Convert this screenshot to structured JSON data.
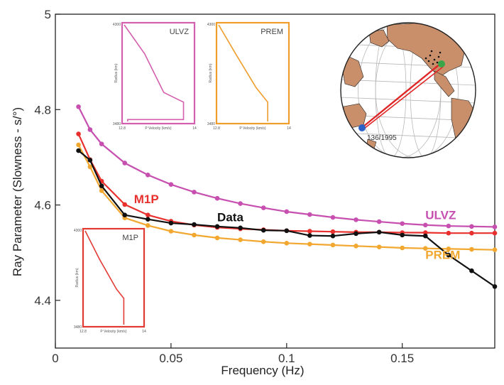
{
  "chart_data": {
    "type": "line",
    "xlabel": "Frequency (Hz)",
    "ylabel": "Ray Parameter (Slowness - s/°)",
    "xlim": [
      0,
      0.19
    ],
    "ylim": [
      4.3,
      5.0
    ],
    "xticks": [
      0,
      0.05,
      0.1,
      0.15
    ],
    "xtick_labels": [
      "0",
      "0.05",
      "0.1",
      "0.15"
    ],
    "yticks": [
      4.4,
      4.6,
      4.8,
      5.0
    ],
    "ytick_labels": [
      "4.4",
      "4.6",
      "4.8",
      "5"
    ],
    "grid": false,
    "series": [
      {
        "name": "ULVZ",
        "color": "#c64fb0",
        "x": [
          0.01,
          0.015,
          0.02,
          0.03,
          0.04,
          0.05,
          0.06,
          0.07,
          0.08,
          0.09,
          0.1,
          0.11,
          0.12,
          0.13,
          0.14,
          0.15,
          0.16,
          0.17,
          0.18,
          0.19
        ],
        "y": [
          4.806,
          4.758,
          4.728,
          4.688,
          4.663,
          4.643,
          4.627,
          4.614,
          4.603,
          4.594,
          4.586,
          4.58,
          4.574,
          4.569,
          4.565,
          4.561,
          4.558,
          4.556,
          4.555,
          4.554
        ]
      },
      {
        "name": "M1P",
        "color": "#e8302e",
        "x": [
          0.01,
          0.015,
          0.02,
          0.03,
          0.04,
          0.05,
          0.06,
          0.07,
          0.08,
          0.09,
          0.1,
          0.11,
          0.12,
          0.13,
          0.14,
          0.15,
          0.16,
          0.17,
          0.18,
          0.19
        ],
        "y": [
          4.749,
          4.695,
          4.65,
          4.601,
          4.579,
          4.566,
          4.558,
          4.553,
          4.55,
          4.548,
          4.546,
          4.545,
          4.544,
          4.543,
          4.543,
          4.542,
          4.542,
          4.541,
          4.541,
          4.541
        ]
      },
      {
        "name": "PREM",
        "color": "#f2a830",
        "x": [
          0.01,
          0.015,
          0.02,
          0.03,
          0.04,
          0.05,
          0.06,
          0.07,
          0.08,
          0.09,
          0.1,
          0.11,
          0.12,
          0.13,
          0.14,
          0.15,
          0.16,
          0.17,
          0.18,
          0.19
        ],
        "y": [
          4.726,
          4.68,
          4.63,
          4.573,
          4.557,
          4.545,
          4.537,
          4.531,
          4.527,
          4.523,
          4.52,
          4.518,
          4.516,
          4.514,
          4.512,
          4.51,
          4.509,
          4.508,
          4.507,
          4.506
        ]
      },
      {
        "name": "Data",
        "color": "#111111",
        "x": [
          0.01,
          0.015,
          0.02,
          0.03,
          0.04,
          0.05,
          0.06,
          0.07,
          0.08,
          0.09,
          0.1,
          0.11,
          0.12,
          0.13,
          0.14,
          0.15,
          0.16,
          0.17,
          0.18,
          0.19
        ],
        "y": [
          4.714,
          4.694,
          4.64,
          4.579,
          4.57,
          4.562,
          4.559,
          4.555,
          4.552,
          4.547,
          4.546,
          4.536,
          4.535,
          4.54,
          4.543,
          4.537,
          4.535,
          4.495,
          4.462,
          4.429
        ]
      }
    ],
    "series_labels": [
      {
        "text": "ULVZ",
        "series": "ULVZ",
        "x": 0.16,
        "y": 4.57
      },
      {
        "text": "M1P",
        "series": "M1P",
        "x": 0.034,
        "y": 4.604
      },
      {
        "text": "Data",
        "series": "Data",
        "x": 0.07,
        "y": 4.566
      },
      {
        "text": "PREM",
        "series": "PREM",
        "x": 0.16,
        "y": 4.487
      }
    ],
    "insets": [
      {
        "title": "ULVZ",
        "color": "#d45fae",
        "xlabel": "P Velocity (km/s)",
        "ylabel": "Radius (km)",
        "xtick_labels": [
          "12.8",
          "14"
        ],
        "ytick_labels": [
          "4300",
          "3480"
        ],
        "profile": [
          [
            0.0,
            0.0
          ],
          [
            0.3,
            0.3
          ],
          [
            0.58,
            0.7
          ],
          [
            0.87,
            0.8
          ],
          [
            0.87,
            0.98
          ],
          [
            0.05,
            0.98
          ],
          [
            0.05,
            1.0
          ]
        ]
      },
      {
        "title": "PREM",
        "color": "#ef9d2b",
        "xlabel": "P Velocity (km/s)",
        "ylabel": "Radius (km)",
        "xtick_labels": [
          "12.8",
          "14"
        ],
        "ytick_labels": [
          "4300",
          "3480"
        ],
        "profile": [
          [
            0.0,
            0.0
          ],
          [
            0.25,
            0.3
          ],
          [
            0.55,
            0.65
          ],
          [
            0.72,
            0.8
          ],
          [
            0.72,
            1.0
          ]
        ]
      },
      {
        "title": "M1P",
        "color": "#e23a33",
        "xlabel": "P Velocity (km/s)",
        "ylabel": "Radius (km)",
        "xtick_labels": [
          "12.8",
          "14"
        ],
        "ytick_labels": [
          "4300",
          "3480"
        ],
        "profile": [
          [
            0.0,
            0.0
          ],
          [
            0.25,
            0.3
          ],
          [
            0.55,
            0.62
          ],
          [
            0.68,
            0.72
          ],
          [
            0.68,
            1.0
          ]
        ]
      }
    ],
    "map": {
      "label": "136/1995",
      "source_color": "#2c62c8",
      "receiver_color": "#3aa64a",
      "path_color": "#e02626"
    }
  }
}
